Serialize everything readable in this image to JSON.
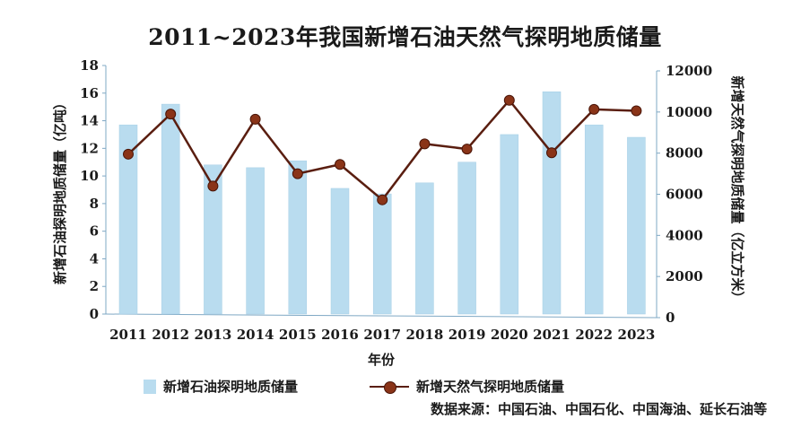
{
  "chart_data": {
    "type": "bar+line",
    "title": "2011~2023年我国新增石油天然气探明地质储量",
    "xlabel": "年份",
    "ylabel_left": "新增石油探明地质储量（亿吨）",
    "ylabel_right": "新增天然气探明地质储量（亿立方米）",
    "categories": [
      "2011",
      "2012",
      "2013",
      "2014",
      "2015",
      "2016",
      "2017",
      "2018",
      "2019",
      "2020",
      "2021",
      "2022",
      "2023"
    ],
    "series": [
      {
        "name": "新增石油探明地质储量",
        "type": "bar",
        "axis": "left",
        "color": "#b9dcef",
        "values": [
          13.7,
          15.2,
          10.8,
          10.6,
          11.1,
          9.1,
          8.7,
          9.5,
          11.0,
          13.0,
          16.1,
          13.7,
          12.8
        ]
      },
      {
        "name": "新增天然气探明地质储量",
        "type": "line",
        "axis": "right",
        "color": "#5a1e10",
        "values": [
          7950,
          9900,
          6400,
          9650,
          7000,
          7450,
          5730,
          8450,
          8200,
          10570,
          8020,
          10130,
          10060
        ]
      }
    ],
    "ylim_left": [
      0,
      18
    ],
    "yticks_left": [
      "0",
      "2",
      "4",
      "6",
      "8",
      "10",
      "12",
      "14",
      "16",
      "18"
    ],
    "ylim_right": [
      0,
      12000
    ],
    "yticks_right": [
      "0",
      "2000",
      "4000",
      "6000",
      "8000",
      "10000",
      "12000"
    ],
    "grid": false,
    "legend_position": "bottom"
  },
  "source": "数据来源：中国石油、中国石化、中国海油、延长石油等"
}
